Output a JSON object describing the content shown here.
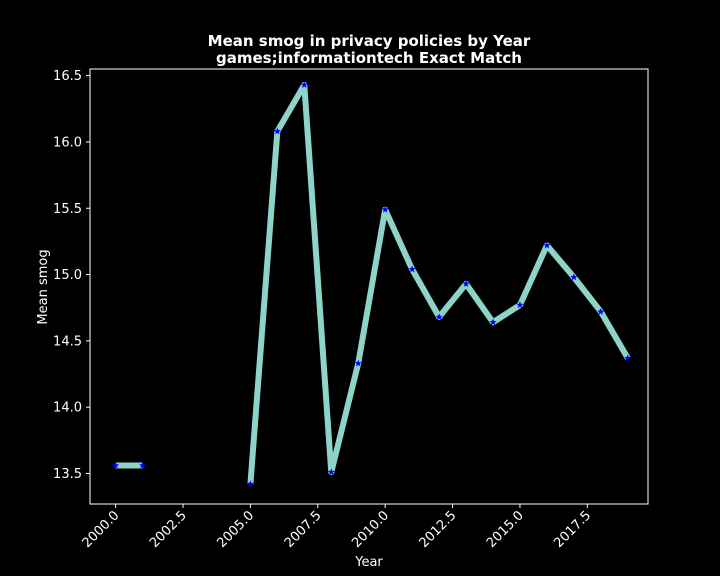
{
  "chart_data": {
    "type": "line",
    "title": "Mean smog in privacy policies by Year",
    "subtitle": "games;informationtech Exact Match",
    "xlabel": "Year",
    "ylabel": "Mean smog",
    "xlim": [
      1999.05,
      2019.75
    ],
    "ylim": [
      13.27,
      16.55
    ],
    "x_ticks": [
      "2000.0",
      "2002.5",
      "2005.0",
      "2007.5",
      "2010.0",
      "2012.5",
      "2015.0",
      "2017.5"
    ],
    "x_tick_values": [
      2000.0,
      2002.5,
      2005.0,
      2007.5,
      2010.0,
      2012.5,
      2015.0,
      2017.5
    ],
    "y_ticks": [
      "13.5",
      "14.0",
      "14.5",
      "15.0",
      "15.5",
      "16.0",
      "16.5"
    ],
    "y_tick_values": [
      13.5,
      14.0,
      14.5,
      15.0,
      15.5,
      16.0,
      16.5
    ],
    "grid": false,
    "line_color": "#8dd3c7",
    "marker_color": "#0000ff",
    "background": "#000000",
    "segments": [
      {
        "x": [
          2000,
          2001
        ],
        "y": [
          13.56,
          13.56
        ]
      },
      {
        "x": [
          2005,
          2006,
          2007,
          2008,
          2009,
          2010,
          2011,
          2012,
          2013,
          2014,
          2015,
          2016,
          2017,
          2018,
          2019
        ],
        "y": [
          13.42,
          16.08,
          16.43,
          13.51,
          14.33,
          15.49,
          15.04,
          14.68,
          14.93,
          14.64,
          14.77,
          15.22,
          14.98,
          14.72,
          14.37
        ]
      }
    ]
  }
}
